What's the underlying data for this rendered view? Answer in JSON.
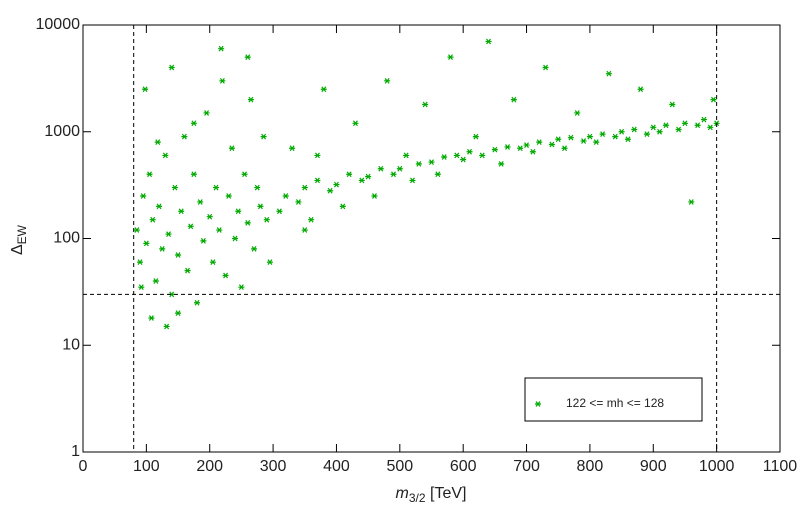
{
  "chart_data": {
    "type": "scatter",
    "xlabel": {
      "symbol": "m",
      "subscript": "3/2",
      "unit": "[TeV]"
    },
    "ylabel": {
      "symbol": "Δ",
      "subscript": "EW"
    },
    "xlim": [
      0,
      1100
    ],
    "xticks": [
      0,
      100,
      200,
      300,
      400,
      500,
      600,
      700,
      800,
      900,
      1000,
      1100
    ],
    "ylim": [
      1,
      10000
    ],
    "yticks": [
      1,
      10,
      100,
      1000,
      10000
    ],
    "ylog": true,
    "vlines": [
      80,
      1000
    ],
    "hlines": [
      30
    ],
    "legend": "lower right",
    "series": [
      {
        "name": "122 <= mh <= 128",
        "color": "#00aa00",
        "x": [
          85,
          90,
          95,
          100,
          105,
          110,
          115,
          120,
          125,
          130,
          135,
          140,
          145,
          150,
          155,
          160,
          165,
          170,
          175,
          180,
          185,
          190,
          195,
          200,
          205,
          210,
          215,
          220,
          225,
          230,
          235,
          240,
          245,
          250,
          255,
          260,
          265,
          270,
          275,
          280,
          285,
          290,
          295,
          92,
          108,
          132,
          150,
          175,
          118,
          260,
          218,
          98,
          140,
          310,
          320,
          330,
          340,
          350,
          360,
          370,
          380,
          390,
          400,
          410,
          420,
          430,
          440,
          450,
          460,
          470,
          480,
          490,
          500,
          510,
          520,
          530,
          540,
          550,
          560,
          570,
          580,
          590,
          600,
          610,
          620,
          630,
          640,
          650,
          660,
          670,
          680,
          690,
          700,
          710,
          720,
          730,
          740,
          750,
          760,
          770,
          780,
          790,
          800,
          810,
          820,
          830,
          840,
          850,
          860,
          870,
          880,
          890,
          900,
          910,
          920,
          930,
          940,
          950,
          960,
          970,
          980,
          990,
          1000,
          995,
          350,
          370
        ],
        "values": [
          120,
          60,
          250,
          90,
          400,
          150,
          40,
          200,
          80,
          600,
          110,
          30,
          300,
          70,
          180,
          900,
          50,
          130,
          400,
          25,
          220,
          95,
          1500,
          160,
          60,
          300,
          120,
          3000,
          45,
          250,
          700,
          100,
          180,
          35,
          400,
          140,
          2000,
          80,
          300,
          200,
          900,
          150,
          60,
          35,
          18,
          15,
          20,
          1200,
          800,
          5000,
          6000,
          2500,
          4000,
          180,
          250,
          700,
          220,
          300,
          150,
          350,
          2500,
          280,
          320,
          200,
          400,
          1200,
          350,
          380,
          250,
          450,
          3000,
          400,
          450,
          600,
          350,
          500,
          1800,
          520,
          400,
          580,
          5000,
          600,
          550,
          650,
          900,
          600,
          7000,
          680,
          500,
          720,
          2000,
          700,
          750,
          650,
          800,
          4000,
          760,
          850,
          700,
          880,
          1500,
          820,
          900,
          800,
          950,
          3500,
          900,
          1000,
          850,
          1050,
          2500,
          950,
          1100,
          1000,
          1150,
          1800,
          1050,
          1200,
          220,
          1150,
          1300,
          1100,
          1200,
          2000,
          120,
          600
        ]
      }
    ]
  }
}
